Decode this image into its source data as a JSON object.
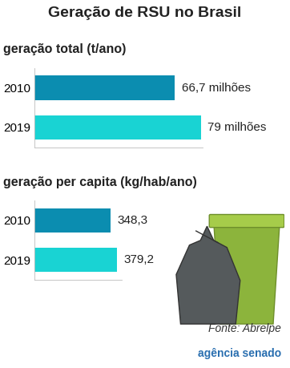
{
  "title": "Geração de RSU no Brasil",
  "source": "Fonte: Abrelpe",
  "credit": "agência senado",
  "chart_data": [
    {
      "type": "bar",
      "orientation": "horizontal",
      "title": "geração total (t/ano)",
      "categories": [
        "2010",
        "2019"
      ],
      "values": [
        66700000,
        79000000
      ],
      "value_labels": [
        "66,7 milhões",
        "79 milhões"
      ],
      "colors": [
        "#0b8db0",
        "#19d3d3"
      ],
      "data_labels": true,
      "tick_labels": "y",
      "xlim": [
        0,
        80000000
      ],
      "xticks": []
    },
    {
      "type": "bar",
      "orientation": "horizontal",
      "title": "geração per capita (kg/hab/ano)",
      "categories": [
        "2010",
        "2019"
      ],
      "values": [
        348.3,
        379.2
      ],
      "value_labels": [
        "348,3",
        "379,2"
      ],
      "colors": [
        "#0b8db0",
        "#19d3d3"
      ],
      "data_labels": true,
      "tick_labels": "y",
      "xlim": [
        0,
        400
      ],
      "xticks": []
    }
  ]
}
